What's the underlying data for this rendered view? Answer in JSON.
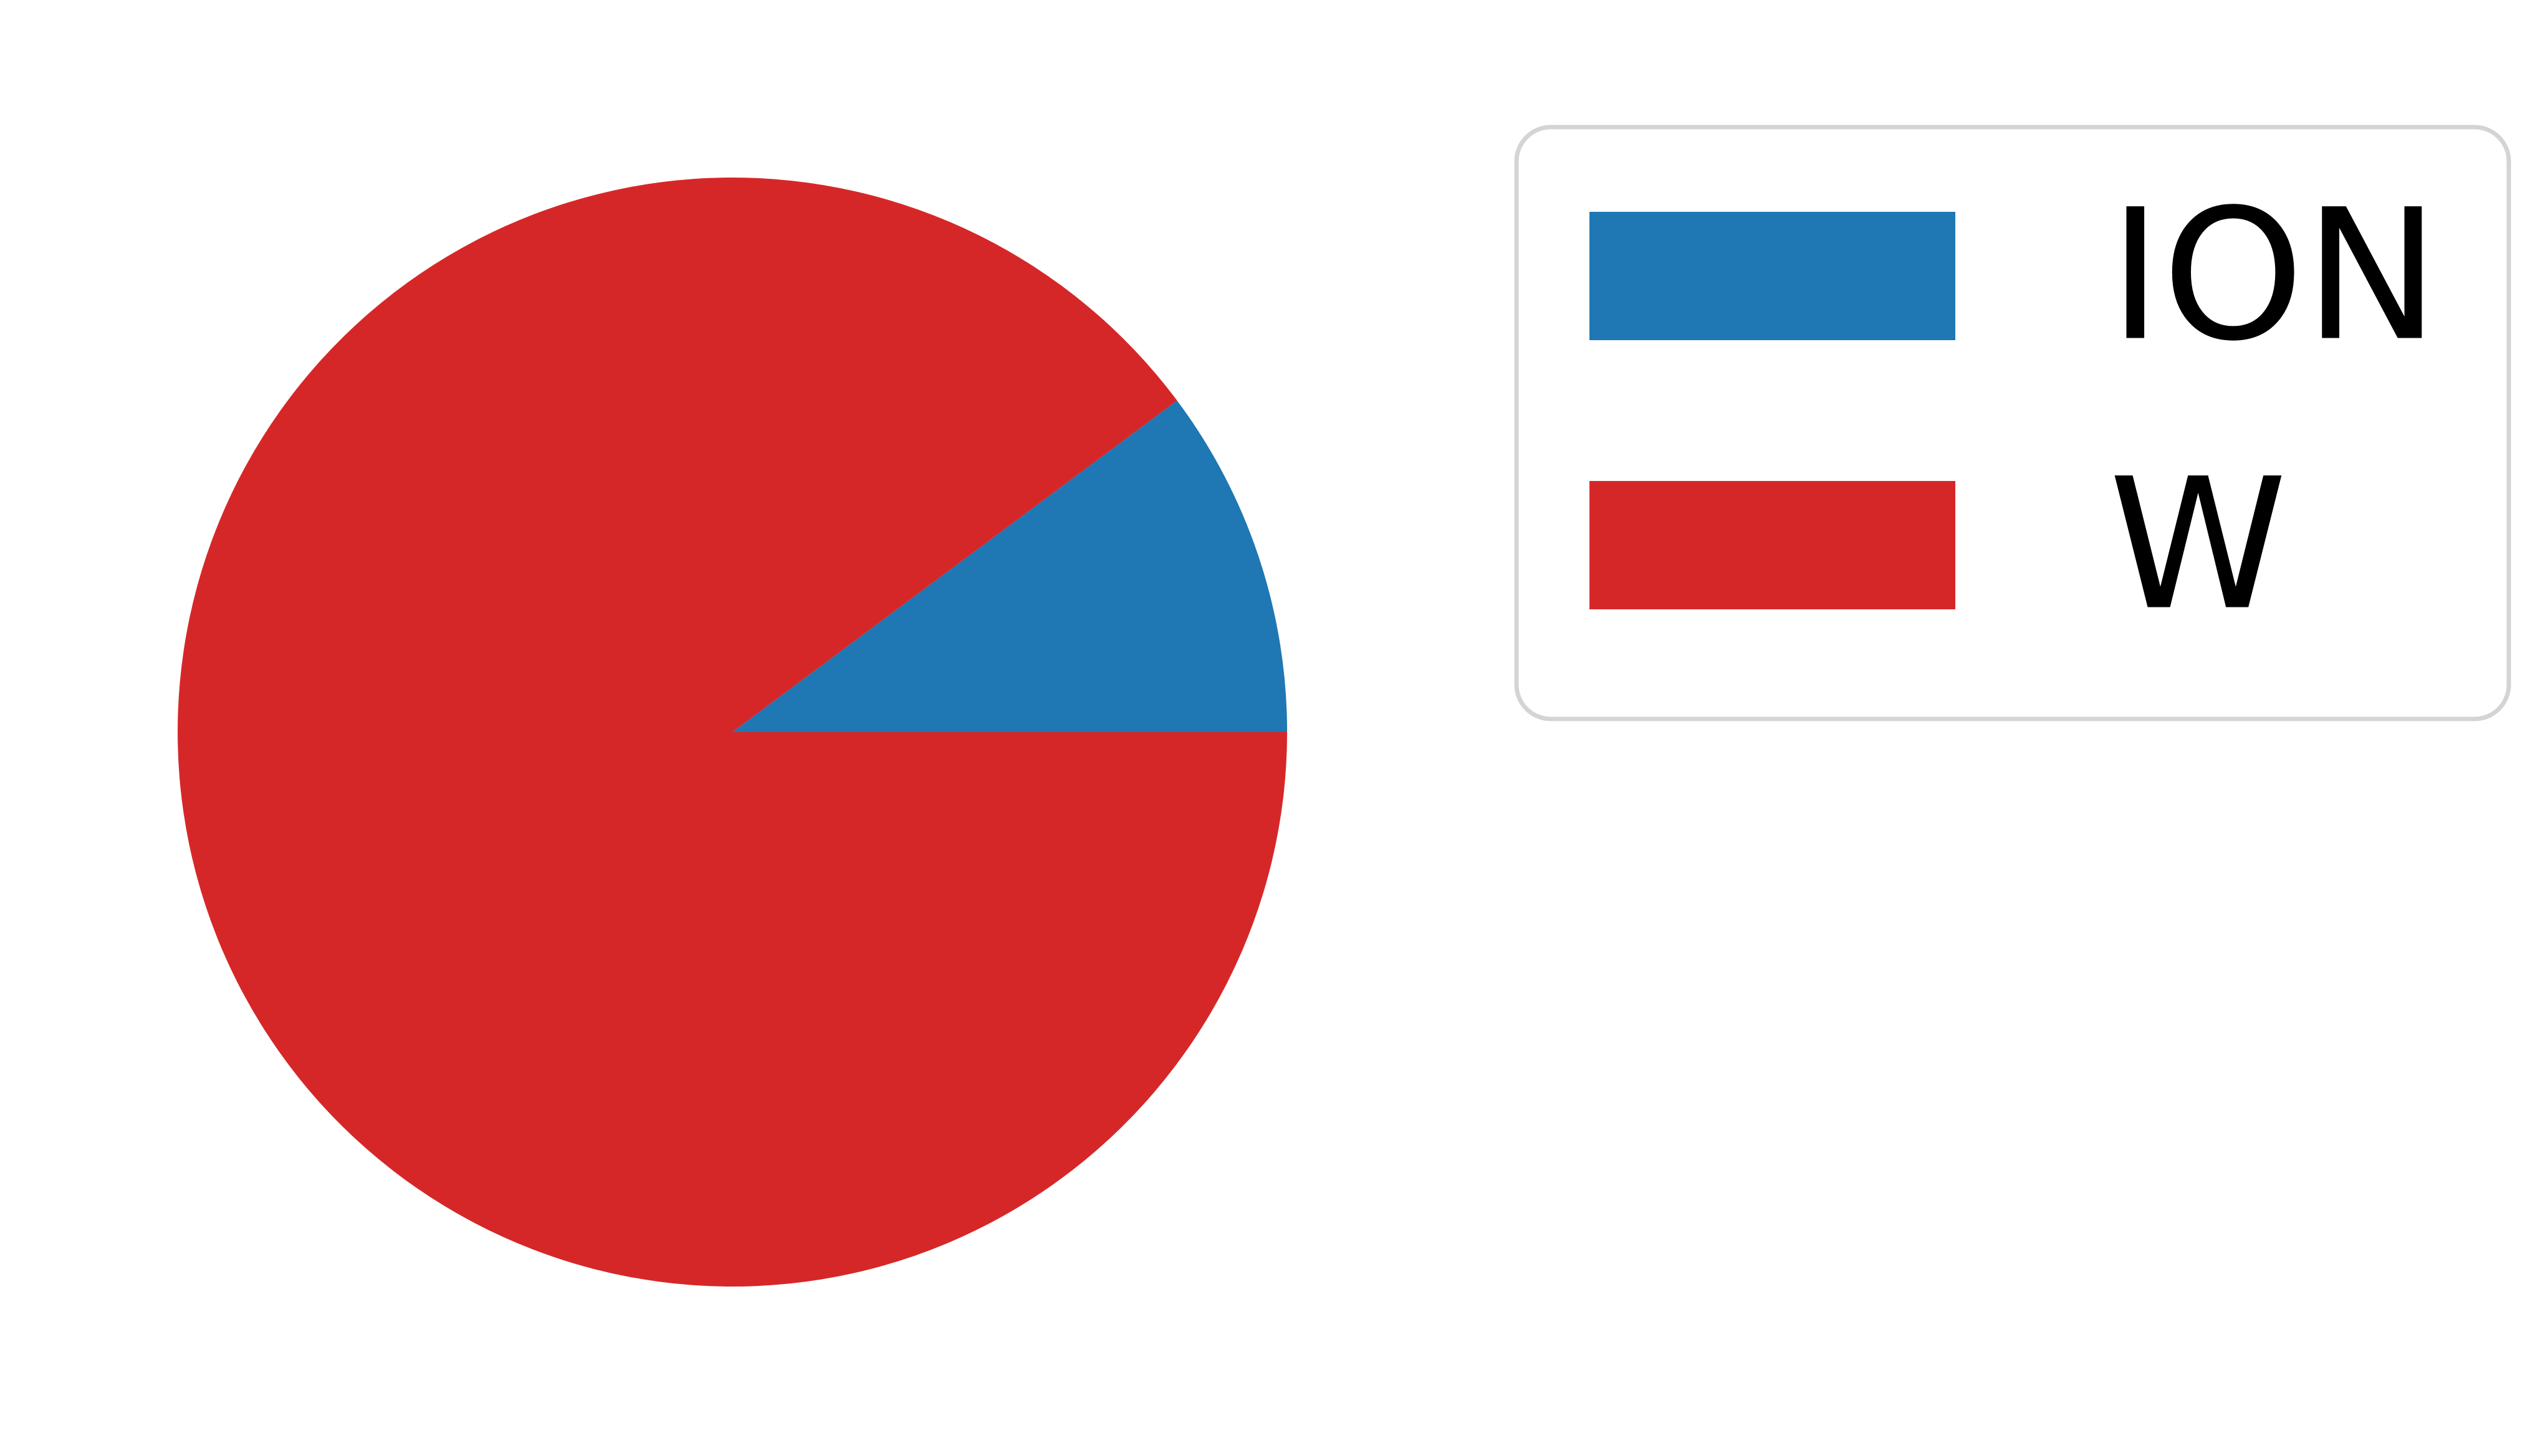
{
  "chart_data": {
    "type": "pie",
    "title": "",
    "labels": [
      "ION",
      "W"
    ],
    "values": [
      10.2,
      89.8
    ],
    "colors": [
      "#1f77b4",
      "#d62728"
    ],
    "start_angle_deg": 0,
    "direction": "counterclockwise",
    "legend": {
      "position": "right",
      "frame": true
    }
  }
}
